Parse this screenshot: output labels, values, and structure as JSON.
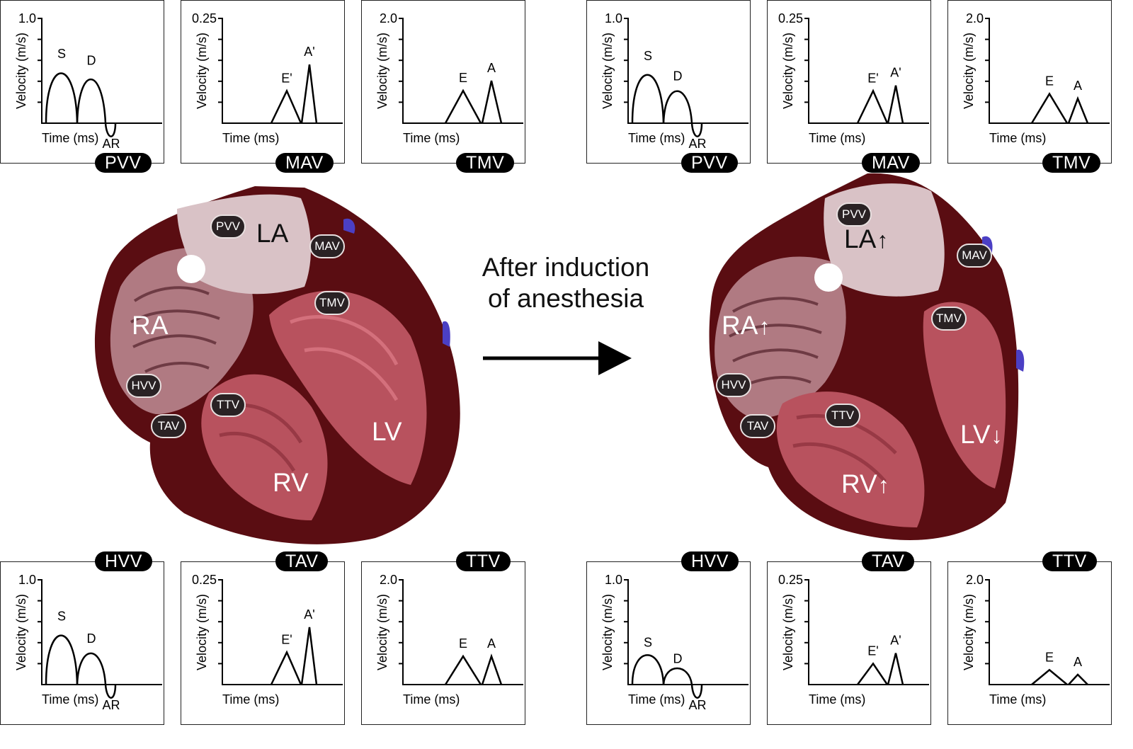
{
  "caption": {
    "line1": "After induction",
    "line2": "of anesthesia"
  },
  "axis_text": {
    "x_label": "Time (ms)",
    "y_label": "Velocity (m/s)"
  },
  "colors": {
    "myocardium": "#5a0d12",
    "chamber_wall": "#b8525e",
    "atrium": "#d9c2c6",
    "label_bg": "#2a2224",
    "vessel": "#4b3fc4",
    "curve": "#000000"
  },
  "hearts": [
    {
      "chambers": {
        "la": "LA",
        "ra": "RA",
        "lv": "LV",
        "rv": "RV"
      },
      "arrows": {
        "la": "",
        "ra": "",
        "lv": "",
        "rv": ""
      },
      "valves": {
        "pvv": "PVV",
        "mav": "MAV",
        "tmv": "TMV",
        "hvv": "HVV",
        "ttv": "TTV",
        "tav": "TAV"
      }
    },
    {
      "chambers": {
        "la": "LA",
        "ra": "RA",
        "lv": "LV",
        "rv": "RV"
      },
      "arrows": {
        "la": "up",
        "ra": "up",
        "lv": "down",
        "rv": "up"
      },
      "valves": {
        "pvv": "PVV",
        "mav": "MAV",
        "tmv": "TMV",
        "hvv": "HVV",
        "ttv": "TTV",
        "tav": "TAV"
      }
    }
  ],
  "chart_data": [
    {
      "name": "PVV",
      "type": "line",
      "state": "baseline",
      "ylim": [
        0,
        1.0
      ],
      "ytick_label": "1.0",
      "xlabel": "Time (ms)",
      "ylabel": "Velocity (m/s)",
      "waves": [
        {
          "label": "S",
          "peak": 0.54
        },
        {
          "label": "D",
          "peak": 0.49
        },
        {
          "label": "AR",
          "peak": -0.08
        }
      ]
    },
    {
      "name": "MAV",
      "type": "line",
      "state": "baseline",
      "ylim": [
        0,
        0.25
      ],
      "ytick_label": "0.25",
      "xlabel": "Time (ms)",
      "ylabel": "Velocity (m/s)",
      "waves": [
        {
          "label": "E'",
          "peak": 0.077
        },
        {
          "label": "A'",
          "peak": 0.14
        }
      ]
    },
    {
      "name": "TMV",
      "type": "line",
      "state": "baseline",
      "ylim": [
        0,
        2.0
      ],
      "ytick_label": "2.0",
      "xlabel": "Time (ms)",
      "ylabel": "Velocity (m/s)",
      "waves": [
        {
          "label": "E",
          "peak": 0.62
        },
        {
          "label": "A",
          "peak": 0.81
        }
      ]
    },
    {
      "name": "HVV",
      "type": "line",
      "state": "baseline",
      "ylim": [
        0,
        1.0
      ],
      "ytick_label": "1.0",
      "xlabel": "Time (ms)",
      "ylabel": "Velocity (m/s)",
      "waves": [
        {
          "label": "S",
          "peak": 0.53
        },
        {
          "label": "D",
          "peak": 0.33
        },
        {
          "label": "AR",
          "peak": -0.08
        }
      ]
    },
    {
      "name": "TAV",
      "type": "line",
      "state": "baseline",
      "ylim": [
        0,
        0.25
      ],
      "ytick_label": "0.25",
      "xlabel": "Time (ms)",
      "ylabel": "Velocity (m/s)",
      "waves": [
        {
          "label": "E'",
          "peak": 0.077
        },
        {
          "label": "A'",
          "peak": 0.137
        }
      ]
    },
    {
      "name": "TTV",
      "type": "line",
      "state": "baseline",
      "ylim": [
        0,
        2.0
      ],
      "ytick_label": "2.0",
      "xlabel": "Time (ms)",
      "ylabel": "Velocity (m/s)",
      "waves": [
        {
          "label": "E",
          "peak": 0.54
        },
        {
          "label": "A",
          "peak": 0.54
        }
      ]
    },
    {
      "name": "PVV",
      "type": "line",
      "state": "after induction",
      "ylim": [
        0,
        1.0
      ],
      "ytick_label": "1.0",
      "xlabel": "Time (ms)",
      "ylabel": "Velocity (m/s)",
      "waves": [
        {
          "label": "S",
          "peak": 0.52
        },
        {
          "label": "D",
          "peak": 0.34
        },
        {
          "label": "AR",
          "peak": -0.08
        }
      ]
    },
    {
      "name": "MAV",
      "type": "line",
      "state": "after induction",
      "ylim": [
        0,
        0.25
      ],
      "ytick_label": "0.25",
      "xlabel": "Time (ms)",
      "ylabel": "Velocity (m/s)",
      "waves": [
        {
          "label": "E'",
          "peak": 0.077
        },
        {
          "label": "A'",
          "peak": 0.09
        }
      ]
    },
    {
      "name": "TMV",
      "type": "line",
      "state": "after induction",
      "ylim": [
        0,
        2.0
      ],
      "ytick_label": "2.0",
      "xlabel": "Time (ms)",
      "ylabel": "Velocity (m/s)",
      "waves": [
        {
          "label": "E",
          "peak": 0.56
        },
        {
          "label": "A",
          "peak": 0.47
        }
      ]
    },
    {
      "name": "HVV",
      "type": "line",
      "state": "after induction",
      "ylim": [
        0,
        1.0
      ],
      "ytick_label": "1.0",
      "xlabel": "Time (ms)",
      "ylabel": "Velocity (m/s)",
      "waves": [
        {
          "label": "S",
          "peak": 0.28
        },
        {
          "label": "D",
          "peak": 0.14
        },
        {
          "label": "AR",
          "peak": -0.08
        }
      ]
    },
    {
      "name": "TAV",
      "type": "line",
      "state": "after induction",
      "ylim": [
        0,
        0.25
      ],
      "ytick_label": "0.25",
      "xlabel": "Time (ms)",
      "ylabel": "Velocity (m/s)",
      "waves": [
        {
          "label": "E'",
          "peak": 0.05
        },
        {
          "label": "A'",
          "peak": 0.075
        }
      ]
    },
    {
      "name": "TTV",
      "type": "line",
      "state": "after induction",
      "ylim": [
        0,
        2.0
      ],
      "ytick_label": "2.0",
      "xlabel": "Time (ms)",
      "ylabel": "Velocity (m/s)",
      "waves": [
        {
          "label": "E",
          "peak": 0.28
        },
        {
          "label": "A",
          "peak": 0.19
        }
      ]
    }
  ]
}
